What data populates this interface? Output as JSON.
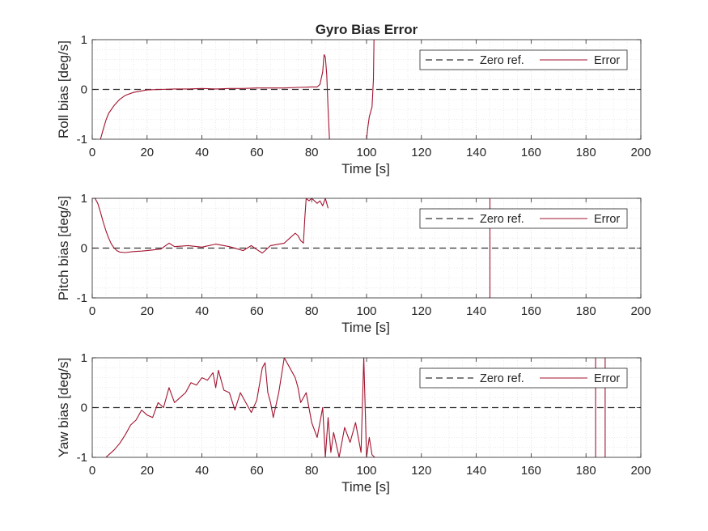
{
  "figure_title": "Gyro Bias Error",
  "colors": {
    "error": "#A2142F",
    "zero_ref": "#333333",
    "axis": "#262626",
    "grid": "#d8d8d8"
  },
  "chart_data": [
    {
      "type": "line",
      "title": "",
      "xlabel": "Time [s]",
      "ylabel": "Roll bias [deg/s]",
      "xlim": [
        0,
        200
      ],
      "ylim": [
        -1,
        1
      ],
      "xticks": [
        "0",
        "20",
        "40",
        "60",
        "80",
        "100",
        "120",
        "140",
        "160",
        "180",
        "200"
      ],
      "yticks": [
        "-1",
        "0",
        "1"
      ],
      "grid": true,
      "minor_grid": true,
      "legend": {
        "position": "top-right",
        "entries": [
          "Zero ref.",
          "Error"
        ]
      },
      "series": [
        {
          "name": "Zero ref.",
          "style": "dashed",
          "x": [
            0,
            200
          ],
          "y": [
            0,
            0
          ]
        },
        {
          "name": "Error",
          "style": "solid",
          "segments": [
            {
              "x": [
                3,
                4,
                5,
                6,
                8,
                10,
                12,
                15,
                18,
                20,
                25,
                30,
                35,
                40,
                45,
                50,
                55,
                60,
                65,
                70,
                75,
                80,
                82,
                83,
                84,
                84.5,
                85,
                85.5,
                86,
                86.5
              ],
              "y": [
                -1,
                -0.8,
                -0.62,
                -0.48,
                -0.32,
                -0.2,
                -0.12,
                -0.06,
                -0.03,
                -0.01,
                0,
                0.01,
                0.01,
                0.02,
                0.01,
                0.02,
                0.02,
                0.03,
                0.03,
                0.03,
                0.04,
                0.05,
                0.05,
                0.1,
                0.35,
                0.7,
                0.65,
                0.3,
                -0.4,
                -1
              ]
            },
            {
              "x": [
                100,
                100.5,
                101,
                101.5,
                102,
                102.5,
                102.7
              ],
              "y": [
                -1,
                -0.75,
                -0.55,
                -0.45,
                -0.35,
                0.2,
                1
              ]
            }
          ]
        }
      ]
    },
    {
      "type": "line",
      "title": "",
      "xlabel": "Time [s]",
      "ylabel": "Pitch bias [deg/s]",
      "xlim": [
        0,
        200
      ],
      "ylim": [
        -1,
        1
      ],
      "xticks": [
        "0",
        "20",
        "40",
        "60",
        "80",
        "100",
        "120",
        "140",
        "160",
        "180",
        "200"
      ],
      "yticks": [
        "-1",
        "0",
        "1"
      ],
      "grid": true,
      "minor_grid": true,
      "legend": {
        "position": "top-right",
        "entries": [
          "Zero ref.",
          "Error"
        ]
      },
      "series": [
        {
          "name": "Zero ref.",
          "style": "dashed",
          "x": [
            0,
            200
          ],
          "y": [
            0,
            0
          ]
        },
        {
          "name": "Error",
          "style": "solid",
          "segments": [
            {
              "x": [
                1,
                2,
                3,
                4,
                5,
                6,
                7,
                8,
                9,
                10,
                12,
                15,
                18,
                20,
                25,
                28,
                30,
                35,
                40,
                45,
                50,
                55,
                58,
                60,
                62,
                65,
                70,
                72,
                74,
                75,
                76,
                77,
                77.5,
                78,
                79,
                80,
                82,
                83,
                84,
                85,
                86
              ],
              "y": [
                1,
                0.9,
                0.72,
                0.52,
                0.35,
                0.2,
                0.08,
                0,
                -0.05,
                -0.08,
                -0.09,
                -0.07,
                -0.06,
                -0.05,
                -0.02,
                0.1,
                0.03,
                0.05,
                0.02,
                0.08,
                0.03,
                -0.05,
                0.05,
                -0.03,
                -0.1,
                0.05,
                0.1,
                0.2,
                0.3,
                0.25,
                0.15,
                0.1,
                0.6,
                1,
                0.95,
                1,
                0.9,
                0.95,
                0.85,
                1,
                0.8
              ]
            },
            {
              "x": [
                145,
                145
              ],
              "y": [
                1,
                -1
              ]
            }
          ]
        }
      ]
    },
    {
      "type": "line",
      "title": "",
      "xlabel": "Time [s]",
      "ylabel": "Yaw bias [deg/s]",
      "xlim": [
        0,
        200
      ],
      "ylim": [
        -1,
        1
      ],
      "xticks": [
        "0",
        "20",
        "40",
        "60",
        "80",
        "100",
        "120",
        "140",
        "160",
        "180",
        "200"
      ],
      "yticks": [
        "-1",
        "0",
        "1"
      ],
      "grid": true,
      "minor_grid": true,
      "legend": {
        "position": "top-right",
        "entries": [
          "Zero ref.",
          "Error"
        ]
      },
      "series": [
        {
          "name": "Zero ref.",
          "style": "dashed",
          "x": [
            0,
            200
          ],
          "y": [
            0,
            0
          ]
        },
        {
          "name": "Error",
          "style": "solid",
          "segments": [
            {
              "x": [
                5,
                8,
                10,
                12,
                14,
                16,
                18,
                20,
                22,
                24,
                26,
                28,
                30,
                32,
                34,
                36,
                38,
                40,
                42,
                44,
                45,
                46,
                48,
                50,
                52,
                54,
                56,
                58,
                60,
                62,
                63,
                64,
                65,
                66,
                68,
                70,
                72,
                74,
                75,
                76,
                78,
                80,
                82,
                84,
                85,
                86,
                87,
                88,
                90,
                92,
                94,
                96,
                98,
                99,
                100,
                101,
                102,
                103
              ],
              "y": [
                -1,
                -0.85,
                -0.72,
                -0.55,
                -0.35,
                -0.25,
                -0.05,
                -0.15,
                -0.2,
                0.1,
                0.0,
                0.4,
                0.1,
                0.2,
                0.3,
                0.5,
                0.45,
                0.6,
                0.55,
                0.7,
                0.4,
                0.75,
                0.35,
                0.3,
                -0.05,
                0.3,
                0.1,
                -0.1,
                0.15,
                0.8,
                0.9,
                0.3,
                0.1,
                -0.2,
                0.3,
                1,
                0.8,
                0.6,
                0.4,
                0.1,
                0.3,
                -0.3,
                -0.6,
                0.0,
                -1,
                -0.2,
                -0.9,
                -0.5,
                -1,
                -0.4,
                -0.7,
                -0.3,
                -0.9,
                1,
                -1,
                -0.6,
                -0.95,
                -1
              ]
            },
            {
              "x": [
                183.5,
                183.5
              ],
              "y": [
                -1,
                1
              ]
            },
            {
              "x": [
                187,
                187
              ],
              "y": [
                1,
                -1
              ]
            }
          ]
        }
      ]
    }
  ]
}
